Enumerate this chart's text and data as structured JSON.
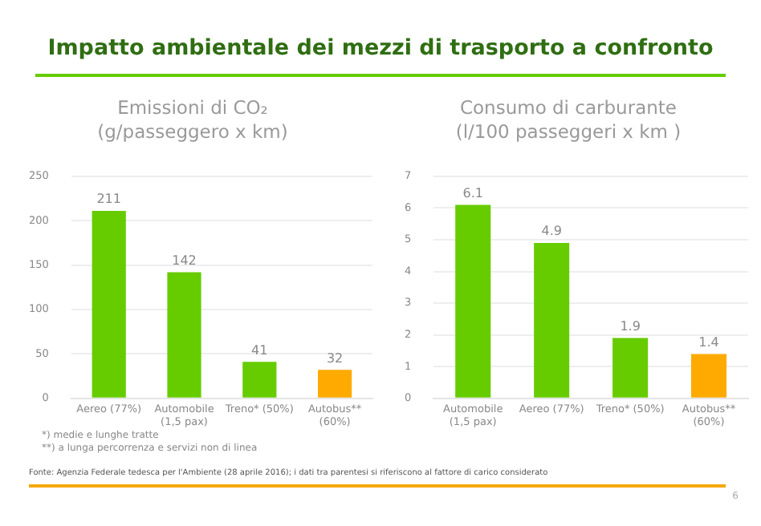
{
  "chart_data": [
    {
      "type": "bar",
      "title": "Emissioni di CO₂\n(g/passeggero x km)",
      "categories": [
        "Aereo (77%)",
        "Automobile\n(1,5 pax)",
        "Treno* (50%)",
        "Autobus**\n(60%)"
      ],
      "values": [
        211,
        142,
        41,
        32
      ],
      "colors": [
        "#66cc00",
        "#66cc00",
        "#66cc00",
        "#ffaa00"
      ],
      "ylim": [
        0,
        250
      ],
      "yticks": [
        0,
        50,
        100,
        150,
        200,
        250
      ],
      "grid": "y",
      "data_labels": true,
      "annotations": [
        "Impatto ambientale dei mezzi di trasporto a confronto",
        "*) medie e lunghe tratte",
        "**) a lunga percorrenza e servizi non di linea",
        "Fonte: Agenzia Federale tedesca per l'Ambiente (28 aprile 2016); i dati tra parentesi si riferiscono al fattore di carico considerato"
      ]
    },
    {
      "type": "bar",
      "title": "Consumo di carburante\n(l/100 passeggeri x km )",
      "categories": [
        "Automobile\n(1,5 pax)",
        "Aereo (77%)",
        "Treno* (50%)",
        "Autobus**\n(60%)"
      ],
      "values": [
        6.1,
        4.9,
        1.9,
        1.4
      ],
      "colors": [
        "#66cc00",
        "#66cc00",
        "#66cc00",
        "#ffaa00"
      ],
      "ylim": [
        0,
        7
      ],
      "yticks": [
        0,
        1,
        2,
        3,
        4,
        5,
        6,
        7
      ],
      "grid": "y",
      "data_labels": true,
      "annotations": [
        "6"
      ]
    }
  ]
}
